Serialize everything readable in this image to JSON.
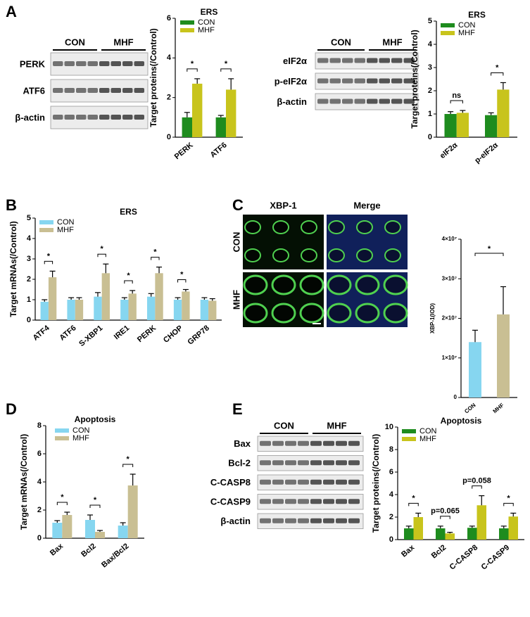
{
  "panels": [
    "A",
    "B",
    "C",
    "D",
    "E"
  ],
  "blots": [
    {
      "groups": [
        "CON",
        "MHF"
      ],
      "rows": [
        "PERK",
        "ATF6",
        "β-actin"
      ]
    },
    {
      "groups": [
        "CON",
        "MHF"
      ],
      "rows": [
        "eIF2α",
        "p-eIF2α",
        "β-actin"
      ]
    },
    {
      "groups": [
        "CON",
        "MHF"
      ],
      "rows": [
        "Bax",
        "Bcl-2",
        "C-CASP8",
        "C-CASP9",
        "β-actin"
      ]
    }
  ],
  "microscopy": {
    "columns": [
      "XBP-1",
      "Merge"
    ],
    "rows": [
      "CON",
      "MHF"
    ]
  },
  "chart_data": [
    {
      "type": "bar",
      "title": "ERS",
      "ylabel": "Target proteins(/Control)",
      "categories": [
        "PERK",
        "ATF6"
      ],
      "series": [
        {
          "name": "CON",
          "color": "#1e8c1e",
          "values": [
            1.0,
            1.0
          ],
          "errors": [
            0.25,
            0.1
          ]
        },
        {
          "name": "MHF",
          "color": "#c8c41c",
          "values": [
            2.7,
            2.4
          ],
          "errors": [
            0.25,
            0.55
          ]
        }
      ],
      "significance": [
        "*",
        "*"
      ],
      "ylim": [
        0,
        6
      ],
      "yticks": [
        0,
        2,
        4,
        6
      ]
    },
    {
      "type": "bar",
      "title": "ERS",
      "ylabel": "Target proteins(/Control)",
      "categories": [
        "eIF2α",
        "p-eIF2α"
      ],
      "series": [
        {
          "name": "CON",
          "color": "#1e8c1e",
          "values": [
            1.0,
            0.95
          ],
          "errors": [
            0.1,
            0.1
          ]
        },
        {
          "name": "MHF",
          "color": "#c8c41c",
          "values": [
            1.05,
            2.05
          ],
          "errors": [
            0.1,
            0.3
          ]
        }
      ],
      "significance": [
        "ns",
        "*"
      ],
      "ylim": [
        0,
        5
      ],
      "yticks": [
        0,
        1,
        2,
        3,
        4,
        5
      ]
    },
    {
      "type": "bar",
      "title": "ERS",
      "ylabel": "Target mRNAs(/Control)",
      "categories": [
        "ATF4",
        "ATF6",
        "S-XBP1",
        "IRE1",
        "PERK",
        "CHOP",
        "GRP78"
      ],
      "series": [
        {
          "name": "CON",
          "color": "#86d6f0",
          "values": [
            0.9,
            1.0,
            1.15,
            1.0,
            1.15,
            1.0,
            1.0
          ],
          "errors": [
            0.1,
            0.1,
            0.2,
            0.1,
            0.15,
            0.1,
            0.1
          ]
        },
        {
          "name": "MHF",
          "color": "#c9bf93",
          "values": [
            2.1,
            1.0,
            2.3,
            1.3,
            2.3,
            1.4,
            0.95
          ],
          "errors": [
            0.3,
            0.1,
            0.45,
            0.15,
            0.3,
            0.1,
            0.1
          ]
        }
      ],
      "significance": [
        "*",
        null,
        "*",
        "*",
        "*",
        "*",
        null
      ],
      "ylim": [
        0,
        5
      ],
      "yticks": [
        0,
        1,
        2,
        3,
        4,
        5
      ]
    },
    {
      "type": "bar",
      "ylabel": "XBP-1(IOD)",
      "categories": [
        "CON",
        "MHF"
      ],
      "values": [
        14000000,
        21000000
      ],
      "errors": [
        3000000,
        7000000
      ],
      "colors": [
        "#86d6f0",
        "#c9bf93"
      ],
      "significance": [
        "*"
      ],
      "ylim": [
        0,
        40000000
      ],
      "yticks": [
        0,
        {
          "value": 10000000,
          "label": "1×10⁷"
        },
        {
          "value": 20000000,
          "label": "2×10⁷"
        },
        {
          "value": 30000000,
          "label": "3×10⁷"
        },
        {
          "value": 40000000,
          "label": "4×10⁷"
        }
      ]
    },
    {
      "type": "bar",
      "title": "Apoptosis",
      "ylabel": "Target mRNAs(/Control)",
      "categories": [
        "Bax",
        "Bcl2",
        "Bax/Bcl2"
      ],
      "series": [
        {
          "name": "CON",
          "color": "#86d6f0",
          "values": [
            1.1,
            1.3,
            0.9
          ],
          "errors": [
            0.15,
            0.35,
            0.2
          ]
        },
        {
          "name": "MHF",
          "color": "#c9bf93",
          "values": [
            1.65,
            0.45,
            3.75
          ],
          "errors": [
            0.2,
            0.1,
            0.8
          ]
        }
      ],
      "significance": [
        "*",
        "*",
        "*"
      ],
      "ylim": [
        0,
        8
      ],
      "yticks": [
        0,
        2,
        4,
        6,
        8
      ]
    },
    {
      "type": "bar",
      "title": "Apoptosis",
      "ylabel": "Target proteins(/Control)",
      "categories": [
        "Bax",
        "Bcl2",
        "C-CASP8",
        "C-CASP9"
      ],
      "series": [
        {
          "name": "CON",
          "color": "#1e8c1e",
          "values": [
            1.0,
            1.0,
            1.05,
            1.0
          ],
          "errors": [
            0.2,
            0.2,
            0.15,
            0.2
          ]
        },
        {
          "name": "MHF",
          "color": "#c8c41c",
          "values": [
            2.0,
            0.55,
            3.05,
            2.05
          ],
          "errors": [
            0.35,
            0.1,
            0.85,
            0.3
          ]
        }
      ],
      "significance": [
        "*",
        "p=0.065",
        "p=0.058",
        "*"
      ],
      "ylim": [
        0,
        10
      ],
      "yticks": [
        0,
        2,
        4,
        6,
        8,
        10
      ]
    }
  ]
}
